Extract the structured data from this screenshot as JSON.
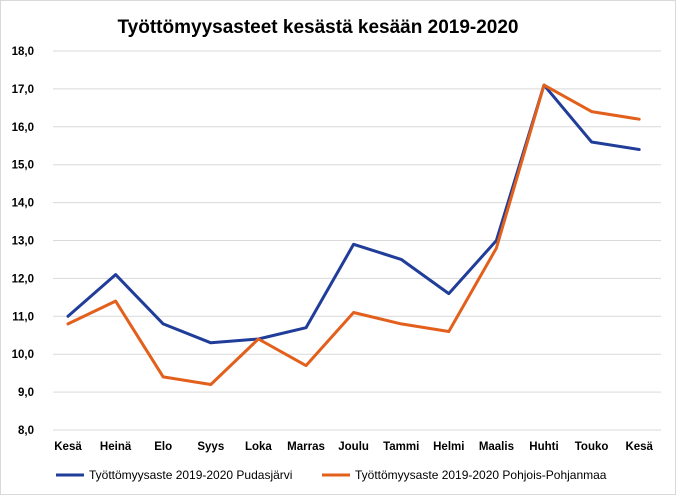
{
  "chart_data": {
    "type": "line",
    "title": "Työttömyysasteet kesästä kesään 2019-2020",
    "xlabel": "",
    "ylabel": "",
    "ylim": [
      8.0,
      18.0
    ],
    "y_ticks": [
      "8,0",
      "9,0",
      "10,0",
      "11,0",
      "12,0",
      "13,0",
      "14,0",
      "15,0",
      "16,0",
      "17,0",
      "18,0"
    ],
    "categories": [
      "Kesä",
      "Heinä",
      "Elo",
      "Syys",
      "Loka",
      "Marras",
      "Joulu",
      "Tammi",
      "Helmi",
      "Maalis",
      "Huhti",
      "Touko",
      "Kesä"
    ],
    "grid": true,
    "legend_position": "bottom",
    "series": [
      {
        "name": "Työttömyysaste 2019-2020 Pudasjärvi",
        "color": "#1f3d99",
        "values": [
          11.0,
          12.1,
          10.8,
          10.3,
          10.4,
          10.7,
          12.9,
          12.5,
          11.6,
          13.0,
          17.1,
          15.6,
          15.4
        ]
      },
      {
        "name": "Työttömyysaste 2019-2020 Pohjois-Pohjanmaa",
        "color": "#e2601c",
        "values": [
          10.8,
          11.4,
          9.4,
          9.2,
          10.4,
          9.7,
          11.1,
          10.8,
          10.6,
          12.8,
          17.1,
          16.4,
          16.2
        ]
      }
    ]
  }
}
